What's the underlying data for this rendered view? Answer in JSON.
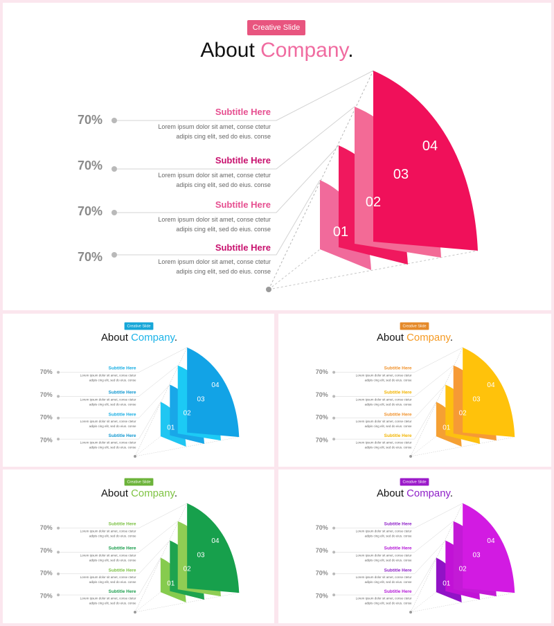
{
  "badge_text": "Creative Slide",
  "title_prefix": "About ",
  "title_highlight": "Company",
  "title_suffix": ".",
  "items": [
    {
      "percent": "70%",
      "subtitle": "Subtitle Here",
      "body_line1": "Lorem ipsum dolor sit amet, conse ctetur",
      "body_line2": "adipis cing elit, sed do eius. conse"
    },
    {
      "percent": "70%",
      "subtitle": "Subtitle Here",
      "body_line1": "Lorem ipsum dolor sit amet, conse ctetur",
      "body_line2": "adipis cing elit, sed do eius. conse"
    },
    {
      "percent": "70%",
      "subtitle": "Subtitle Here",
      "body_line1": "Lorem ipsum dolor sit amet, conse ctetur",
      "body_line2": "adipis cing elit, sed do eius. conse"
    },
    {
      "percent": "70%",
      "subtitle": "Subtitle Here",
      "body_line1": "Lorem ipsum dolor sit amet, conse ctetur",
      "body_line2": "adipis cing elit, sed do eius. conse"
    }
  ],
  "shape_numbers": [
    "01",
    "02",
    "03",
    "04"
  ],
  "themes": [
    {
      "name": "pink",
      "accent": "#f06ba0",
      "badge": "#e8557f",
      "sub": [
        "#e64f90",
        "#c8116e",
        "#e64f90",
        "#c8116e"
      ],
      "fills": [
        "#f16a9b",
        "#f0185e",
        "#f36a96",
        "#f0105a"
      ]
    },
    {
      "name": "blue",
      "accent": "#1ab3e8",
      "badge": "#16a6d8",
      "sub": [
        "#18aee3",
        "#0f97d0",
        "#18aee3",
        "#0f97d0"
      ],
      "fills": [
        "#20c6f2",
        "#19a7e8",
        "#1ccaf5",
        "#12a3e6"
      ]
    },
    {
      "name": "orange",
      "accent": "#f59a23",
      "badge": "#e58a2a",
      "sub": [
        "#f0922d",
        "#f2b400",
        "#f0922d",
        "#f2b400"
      ],
      "fills": [
        "#f5a033",
        "#fdc010",
        "#f69a35",
        "#ffc20b"
      ]
    },
    {
      "name": "green",
      "accent": "#7ec342",
      "badge": "#6cb33a",
      "sub": [
        "#7bc143",
        "#1b9e4d",
        "#7bc143",
        "#1b9e4d"
      ],
      "fills": [
        "#86cb4e",
        "#1ea34f",
        "#8fcd54",
        "#17a04c"
      ]
    },
    {
      "name": "purple",
      "accent": "#8e1fc8",
      "badge": "#9b1ac9",
      "sub": [
        "#8e1fc8",
        "#b316d6",
        "#8e1fc8",
        "#b316d6"
      ],
      "fills": [
        "#9112c6",
        "#c112d6",
        "#c31ad6",
        "#d21be2"
      ]
    }
  ]
}
